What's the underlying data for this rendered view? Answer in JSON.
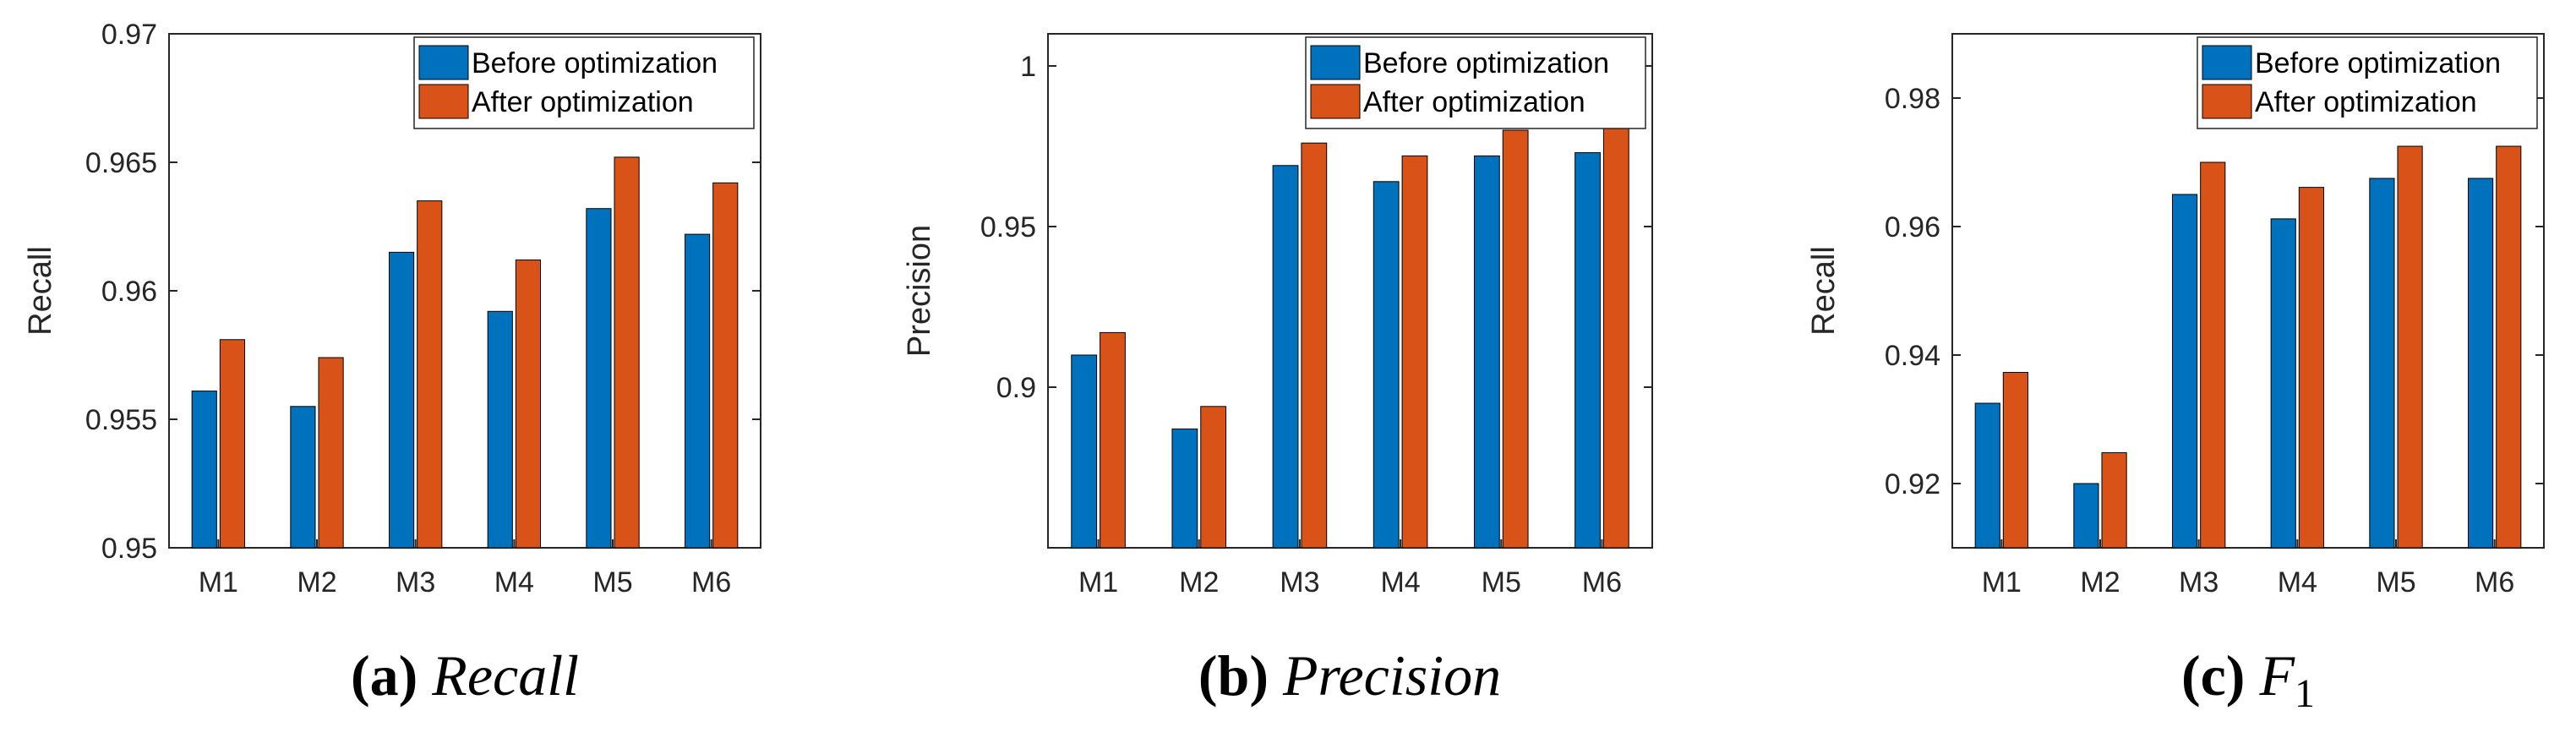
{
  "colors": {
    "before": "#0072BD",
    "after": "#D95319",
    "axis": "#262626"
  },
  "chart_data": [
    {
      "type": "bar",
      "title": "",
      "xlabel": "",
      "ylabel": "Recall",
      "categories": [
        "M1",
        "M2",
        "M3",
        "M4",
        "M5",
        "M6"
      ],
      "ylim": [
        0.95,
        0.97
      ],
      "yticks": [
        0.95,
        0.955,
        0.96,
        0.965,
        0.97
      ],
      "ytick_labels": [
        "0.95",
        "0.955",
        "0.96",
        "0.965",
        "0.97"
      ],
      "series": [
        {
          "name": "Before optimization",
          "values": [
            0.9561,
            0.9555,
            0.9615,
            0.9592,
            0.9632,
            0.9622
          ]
        },
        {
          "name": "After optimization",
          "values": [
            0.9581,
            0.9574,
            0.9635,
            0.9612,
            0.9652,
            0.9642
          ]
        }
      ],
      "legend_position": "top-right",
      "caption": {
        "label": "(a)",
        "text": "Recall"
      }
    },
    {
      "type": "bar",
      "title": "",
      "xlabel": "",
      "ylabel": "Precision",
      "categories": [
        "M1",
        "M2",
        "M3",
        "M4",
        "M5",
        "M6"
      ],
      "ylim": [
        0.85,
        1.01
      ],
      "yticks": [
        0.9,
        0.95,
        1.0
      ],
      "ytick_labels": [
        "0.9",
        "0.95",
        "1"
      ],
      "series": [
        {
          "name": "Before optimization",
          "values": [
            0.91,
            0.887,
            0.969,
            0.964,
            0.972,
            0.973
          ]
        },
        {
          "name": "After optimization",
          "values": [
            0.917,
            0.894,
            0.976,
            0.972,
            0.98,
            0.981
          ]
        }
      ],
      "legend_position": "top-right",
      "caption": {
        "label": "(b)",
        "text": "Precision"
      }
    },
    {
      "type": "bar",
      "title": "",
      "xlabel": "",
      "ylabel": "Recall",
      "categories": [
        "M1",
        "M2",
        "M3",
        "M4",
        "M5",
        "M6"
      ],
      "ylim": [
        0.91,
        0.99
      ],
      "yticks": [
        0.92,
        0.94,
        0.96,
        0.98
      ],
      "ytick_labels": [
        "0.92",
        "0.94",
        "0.96",
        "0.98"
      ],
      "series": [
        {
          "name": "Before optimization",
          "values": [
            0.9325,
            0.92,
            0.965,
            0.9612,
            0.9675,
            0.9675
          ]
        },
        {
          "name": "After optimization",
          "values": [
            0.9373,
            0.9248,
            0.97,
            0.9661,
            0.9725,
            0.9725
          ]
        }
      ],
      "legend_position": "top-right",
      "caption": {
        "label": "(c)",
        "text": "F",
        "subscript": "1"
      }
    }
  ]
}
